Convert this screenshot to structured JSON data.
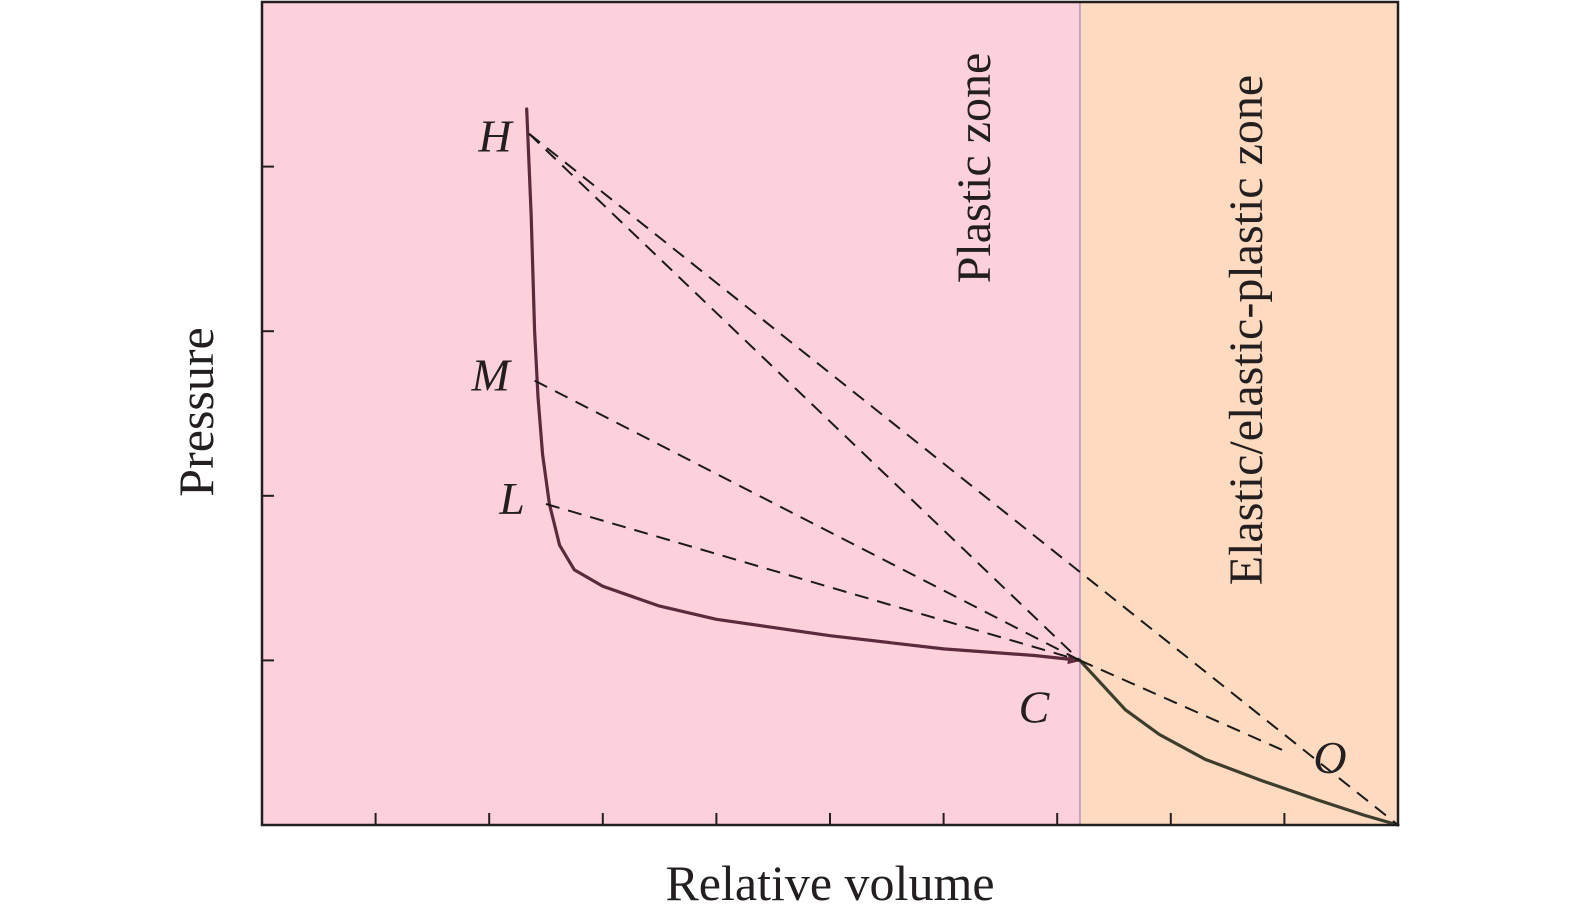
{
  "chart_data": {
    "type": "line",
    "title": "",
    "xlabel": "Relative volume",
    "ylabel": "Pressure",
    "xlim": [
      0,
      10
    ],
    "ylim": [
      0,
      5
    ],
    "x_ticks": [
      1,
      2,
      3,
      4,
      5,
      6,
      7,
      8,
      9
    ],
    "y_ticks": [
      1,
      2,
      3,
      4
    ],
    "tick_labels_shown": false,
    "grid": false,
    "legend": "none",
    "zones": [
      {
        "label": "Plastic zone",
        "x_range": [
          0,
          7.2
        ],
        "color": "#fdd1dc"
      },
      {
        "label": "Elastic/elastic-plastic zone",
        "x_range": [
          7.2,
          10
        ],
        "color": "#fddac0"
      }
    ],
    "zone_boundary_color": "#c9a2c4",
    "points": [
      {
        "label": "H",
        "x": 2.35,
        "y": 4.2
      },
      {
        "label": "M",
        "x": 2.4,
        "y": 2.7
      },
      {
        "label": "L",
        "x": 2.5,
        "y": 1.95
      },
      {
        "label": "C",
        "x": 7.2,
        "y": 1.0
      },
      {
        "label": "O",
        "x": 10.0,
        "y": 0.0
      }
    ],
    "series": [
      {
        "style": "solid",
        "color": "#5b2a3c",
        "points": [
          [
            2.33,
            4.35
          ],
          [
            2.37,
            3.7
          ],
          [
            2.4,
            3.0
          ],
          [
            2.43,
            2.6
          ],
          [
            2.47,
            2.25
          ],
          [
            2.53,
            1.95
          ],
          [
            2.62,
            1.7
          ],
          [
            2.75,
            1.55
          ],
          [
            3.0,
            1.45
          ],
          [
            3.5,
            1.33
          ],
          [
            4.0,
            1.25
          ],
          [
            5.0,
            1.15
          ],
          [
            6.0,
            1.07
          ],
          [
            6.8,
            1.03
          ],
          [
            7.2,
            1.0
          ]
        ]
      },
      {
        "style": "solid",
        "color": "#3d3d2e",
        "points": [
          [
            7.2,
            1.0
          ],
          [
            7.4,
            0.85
          ],
          [
            7.6,
            0.7
          ],
          [
            7.9,
            0.55
          ],
          [
            8.3,
            0.4
          ],
          [
            8.8,
            0.27
          ],
          [
            9.3,
            0.15
          ],
          [
            9.7,
            0.06
          ],
          [
            10.0,
            0.0
          ]
        ]
      },
      {
        "style": "dashed",
        "color": "#1a1a1a",
        "points": [
          [
            2.35,
            4.2
          ],
          [
            7.2,
            1.0
          ]
        ]
      },
      {
        "style": "dashed",
        "color": "#1a1a1a",
        "points": [
          [
            2.4,
            2.7
          ],
          [
            7.2,
            1.0
          ]
        ]
      },
      {
        "style": "dashed",
        "color": "#1a1a1a",
        "points": [
          [
            2.5,
            1.95
          ],
          [
            7.2,
            1.0
          ]
        ]
      },
      {
        "style": "dashed",
        "color": "#1a1a1a",
        "points": [
          [
            2.35,
            4.2
          ],
          [
            10.0,
            0.0
          ]
        ]
      },
      {
        "style": "dashed",
        "color": "#1a1a1a",
        "points": [
          [
            7.2,
            1.0
          ],
          [
            9.0,
            0.45
          ]
        ]
      }
    ],
    "arrow_at": {
      "x": 7.2,
      "y": 1.0
    }
  }
}
